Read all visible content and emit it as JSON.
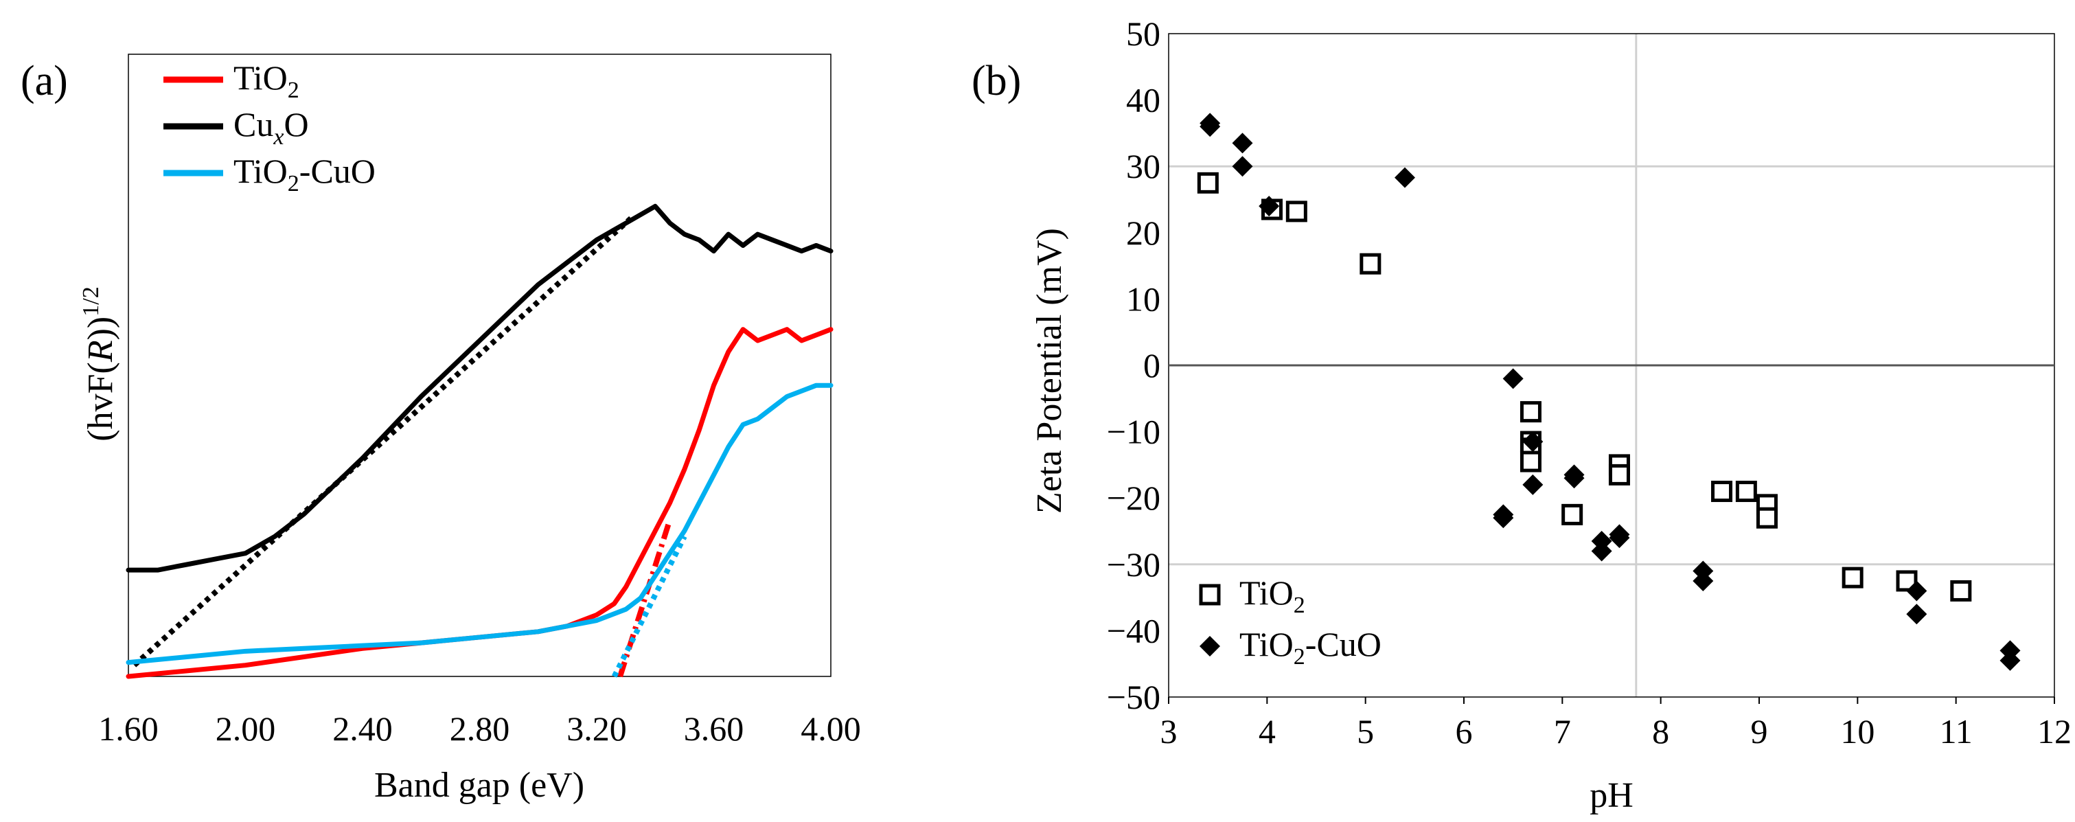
{
  "panels": {
    "a": {
      "label": "(a)"
    },
    "b": {
      "label": "(b)"
    }
  },
  "chart_data": [
    {
      "type": "line",
      "panel": "(a)",
      "title": "",
      "xlabel": "Band gap (eV)",
      "ylabel": "(hvF(R))1/2",
      "ylabel_parts": {
        "pre": "(hvF(",
        "italic": "R",
        "post": "))",
        "sup": "1/2"
      },
      "xlim": [
        1.6,
        4.0
      ],
      "ylim": [
        0,
        1
      ],
      "y_ticks_shown": false,
      "x_ticks": [
        1.6,
        2.0,
        2.4,
        2.8,
        3.2,
        3.6,
        4.0
      ],
      "x_tick_labels": [
        "1.60",
        "2.00",
        "2.40",
        "2.80",
        "3.20",
        "3.60",
        "4.00"
      ],
      "legend": [
        {
          "key": "TiO2",
          "base": "TiO",
          "sub": "2",
          "rest": "",
          "color": "#ff0000"
        },
        {
          "key": "CuxO",
          "base": "Cu",
          "sub": "x",
          "rest": "O",
          "color": "#000000"
        },
        {
          "key": "TiO2-CuO",
          "base": "TiO",
          "sub": "2",
          "rest": "-CuO",
          "color": "#00b0f0"
        }
      ],
      "series": [
        {
          "name": "TiO2",
          "color": "#ff0000",
          "x": [
            1.6,
            1.8,
            2.0,
            2.2,
            2.4,
            2.6,
            2.8,
            3.0,
            3.1,
            3.2,
            3.26,
            3.3,
            3.35,
            3.4,
            3.45,
            3.5,
            3.55,
            3.6,
            3.65,
            3.7,
            3.75,
            3.8,
            3.85,
            3.9,
            3.95,
            4.0
          ],
          "y": [
            0.0,
            0.01,
            0.02,
            0.035,
            0.05,
            0.06,
            0.07,
            0.08,
            0.09,
            0.11,
            0.13,
            0.16,
            0.21,
            0.26,
            0.31,
            0.37,
            0.44,
            0.52,
            0.58,
            0.62,
            0.6,
            0.61,
            0.62,
            0.6,
            0.61,
            0.62
          ]
        },
        {
          "name": "CuxO",
          "color": "#000000",
          "x": [
            1.6,
            1.7,
            1.8,
            1.9,
            2.0,
            2.1,
            2.2,
            2.4,
            2.6,
            2.8,
            3.0,
            3.2,
            3.3,
            3.4,
            3.45,
            3.5,
            3.55,
            3.6,
            3.65,
            3.7,
            3.75,
            3.8,
            3.85,
            3.9,
            3.95,
            4.0
          ],
          "y": [
            0.19,
            0.19,
            0.2,
            0.21,
            0.22,
            0.25,
            0.29,
            0.39,
            0.5,
            0.6,
            0.7,
            0.78,
            0.81,
            0.84,
            0.81,
            0.79,
            0.78,
            0.76,
            0.79,
            0.77,
            0.79,
            0.78,
            0.77,
            0.76,
            0.77,
            0.76
          ]
        },
        {
          "name": "TiO2-CuO",
          "color": "#00b0f0",
          "x": [
            1.6,
            1.8,
            2.0,
            2.2,
            2.4,
            2.6,
            2.8,
            3.0,
            3.1,
            3.2,
            3.3,
            3.35,
            3.4,
            3.45,
            3.5,
            3.55,
            3.6,
            3.65,
            3.7,
            3.75,
            3.8,
            3.85,
            3.9,
            3.95,
            4.0
          ],
          "y": [
            0.025,
            0.035,
            0.045,
            0.05,
            0.055,
            0.06,
            0.07,
            0.08,
            0.09,
            0.1,
            0.12,
            0.14,
            0.18,
            0.22,
            0.26,
            0.31,
            0.36,
            0.41,
            0.45,
            0.46,
            0.48,
            0.5,
            0.51,
            0.52,
            0.52
          ]
        }
      ],
      "fit_lines": [
        {
          "series": "CuxO",
          "color": "#000000",
          "dash": "dotted",
          "x": [
            1.62,
            3.32
          ],
          "y": [
            0.02,
            0.82
          ]
        },
        {
          "series": "TiO2",
          "color": "#ff0000",
          "dash": "dashdot",
          "x": [
            3.28,
            3.45
          ],
          "y": [
            0.0,
            0.28
          ]
        },
        {
          "series": "TiO2-CuO",
          "color": "#00b0f0",
          "dash": "dotted",
          "x": [
            3.26,
            3.5
          ],
          "y": [
            0.0,
            0.25
          ]
        }
      ]
    },
    {
      "type": "scatter",
      "panel": "(b)",
      "title": "",
      "xlabel": "pH",
      "ylabel": "Zeta Potential (mV)",
      "xlim": [
        3,
        12
      ],
      "ylim": [
        -50,
        50
      ],
      "x_ticks": [
        3,
        4,
        5,
        6,
        7,
        8,
        9,
        10,
        11,
        12
      ],
      "y_ticks": [
        50,
        40,
        30,
        20,
        10,
        0,
        -10,
        -20,
        -30,
        -40,
        -50
      ],
      "grid": {
        "vertical_at": [
          7.75
        ],
        "horizontal_at": [
          30,
          -30
        ]
      },
      "legend_position": "bottom-left",
      "legend": [
        {
          "key": "TiO2",
          "base": "TiO",
          "sub": "2",
          "rest": "",
          "marker": "open-square"
        },
        {
          "key": "TiO2-CuO",
          "base": "TiO",
          "sub": "2",
          "rest": "-CuO",
          "marker": "filled-diamond"
        }
      ],
      "series": [
        {
          "name": "TiO2",
          "marker": "open-square",
          "points": [
            [
              3.4,
              27.5
            ],
            [
              4.05,
              23.5
            ],
            [
              4.3,
              23.2
            ],
            [
              5.05,
              15.3
            ],
            [
              6.68,
              -7
            ],
            [
              6.68,
              -11.5
            ],
            [
              6.68,
              -12.5
            ],
            [
              6.68,
              -14.5
            ],
            [
              7.1,
              -22.5
            ],
            [
              7.58,
              -15
            ],
            [
              7.58,
              -16.5
            ],
            [
              8.62,
              -19
            ],
            [
              8.87,
              -19
            ],
            [
              9.08,
              -21
            ],
            [
              9.08,
              -23
            ],
            [
              9.95,
              -32
            ],
            [
              10.5,
              -32.5
            ],
            [
              11.05,
              -34
            ]
          ]
        },
        {
          "name": "TiO2-CuO",
          "marker": "filled-diamond",
          "points": [
            [
              3.42,
              36.5
            ],
            [
              3.42,
              36
            ],
            [
              3.75,
              33.5
            ],
            [
              3.75,
              30
            ],
            [
              4.02,
              24
            ],
            [
              5.4,
              28.3
            ],
            [
              6.5,
              -2
            ],
            [
              6.7,
              -11.5
            ],
            [
              6.7,
              -18
            ],
            [
              6.4,
              -22.5
            ],
            [
              6.4,
              -23
            ],
            [
              7.12,
              -16.5
            ],
            [
              7.12,
              -17
            ],
            [
              7.4,
              -26.5
            ],
            [
              7.4,
              -28
            ],
            [
              7.58,
              -25.5
            ],
            [
              7.58,
              -26
            ],
            [
              8.43,
              -31
            ],
            [
              8.43,
              -32.5
            ],
            [
              10.6,
              -34
            ],
            [
              10.6,
              -37.5
            ],
            [
              11.55,
              -43
            ],
            [
              11.55,
              -44.5
            ]
          ]
        }
      ]
    }
  ]
}
